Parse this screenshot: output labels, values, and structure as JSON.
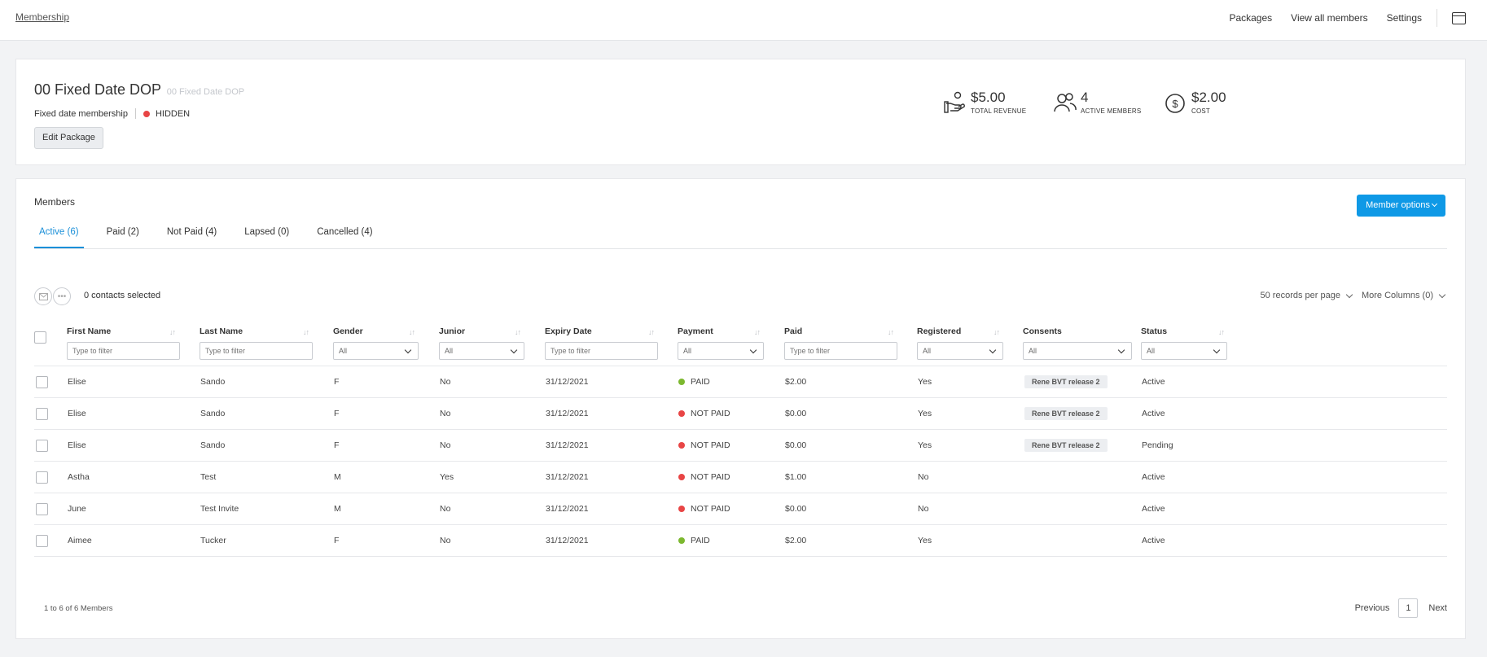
{
  "topbar": {
    "breadcrumb": "Membership",
    "nav": [
      "Packages",
      "View all members",
      "Settings"
    ]
  },
  "package": {
    "title": "00 Fixed Date DOP",
    "subtitle": "00 Fixed Date DOP",
    "type": "Fixed date membership",
    "visibility": "HIDDEN",
    "edit_label": "Edit Package",
    "stats": [
      {
        "value": "$5.00",
        "label": "TOTAL REVENUE",
        "icon": "revenue-hand-icon"
      },
      {
        "value": "4",
        "label": "ACTIVE MEMBERS",
        "icon": "members-icon"
      },
      {
        "value": "$2.00",
        "label": "COST",
        "icon": "dollar-circle-icon"
      }
    ]
  },
  "members": {
    "title": "Members",
    "options_label": "Member options",
    "tabs": [
      "Active (6)",
      "Paid (2)",
      "Not Paid (4)",
      "Lapsed (0)",
      "Cancelled (4)"
    ],
    "active_tab": 0,
    "selected_text": "0 contacts selected",
    "records_per_page": "50 records per page",
    "more_columns": "More Columns (0)",
    "columns": [
      "First Name",
      "Last Name",
      "Gender",
      "Junior",
      "Expiry Date",
      "Payment",
      "Paid",
      "Registered",
      "Consents",
      "Status"
    ],
    "filters": {
      "first_name": "Type to filter",
      "last_name": "Type to filter",
      "gender": "All",
      "junior": "All",
      "expiry": "Type to filter",
      "payment": "All",
      "paid": "Type to filter",
      "registered": "All",
      "consents": "All",
      "status": "All"
    },
    "rows": [
      {
        "first": "Elise",
        "last": "Sando",
        "gender": "F",
        "junior": "No",
        "expiry": "31/12/2021",
        "payment": "PAID",
        "paid": "$2.00",
        "registered": "Yes",
        "consent": "Rene BVT release 2",
        "status": "Active"
      },
      {
        "first": "Elise",
        "last": "Sando",
        "gender": "F",
        "junior": "No",
        "expiry": "31/12/2021",
        "payment": "NOT PAID",
        "paid": "$0.00",
        "registered": "Yes",
        "consent": "Rene BVT release 2",
        "status": "Active"
      },
      {
        "first": "Elise",
        "last": "Sando",
        "gender": "F",
        "junior": "No",
        "expiry": "31/12/2021",
        "payment": "NOT PAID",
        "paid": "$0.00",
        "registered": "Yes",
        "consent": "Rene BVT release 2",
        "status": "Pending"
      },
      {
        "first": "Astha",
        "last": "Test",
        "gender": "M",
        "junior": "Yes",
        "expiry": "31/12/2021",
        "payment": "NOT PAID",
        "paid": "$1.00",
        "registered": "No",
        "consent": "",
        "status": "Active"
      },
      {
        "first": "June",
        "last": "Test Invite",
        "gender": "M",
        "junior": "No",
        "expiry": "31/12/2021",
        "payment": "NOT PAID",
        "paid": "$0.00",
        "registered": "No",
        "consent": "",
        "status": "Active"
      },
      {
        "first": "Aimee",
        "last": "Tucker",
        "gender": "F",
        "junior": "No",
        "expiry": "31/12/2021",
        "payment": "PAID",
        "paid": "$2.00",
        "registered": "Yes",
        "consent": "",
        "status": "Active"
      }
    ],
    "footer_count": "1 to 6 of 6 Members",
    "pager": {
      "prev": "Previous",
      "page": "1",
      "next": "Next"
    }
  },
  "colors": {
    "accent": "#0f99e6",
    "paid": "#7cb82f",
    "not_paid": "#e84545",
    "hidden": "#e84545"
  }
}
